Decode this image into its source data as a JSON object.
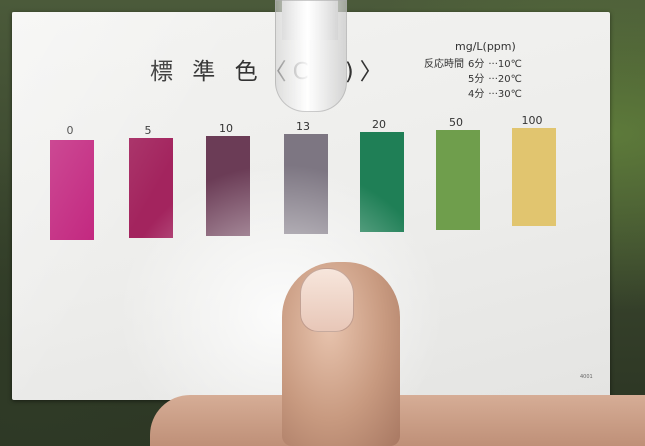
{
  "card": {
    "title": "標 準 色〈C",
    "title_end": ")〉",
    "unit": "mg/L(ppm)",
    "reaction_label": "反応時間",
    "reaction_rows": [
      {
        "time": "6分",
        "temp": "···10℃"
      },
      {
        "time": "5分",
        "temp": "···20℃"
      },
      {
        "time": "4分",
        "temp": "···30℃"
      }
    ],
    "code": "4001"
  },
  "swatches": [
    {
      "label": "0",
      "color": "#c01e7a"
    },
    {
      "label": "5",
      "color": "#a3245e"
    },
    {
      "label": "10",
      "color": "#6b3c56"
    },
    {
      "label": "13",
      "color": "#7d7682"
    },
    {
      "label": "20",
      "color": "#1f7f56"
    },
    {
      "label": "50",
      "color": "#6f9e4c"
    },
    {
      "label": "100",
      "color": "#e1c56f"
    }
  ]
}
